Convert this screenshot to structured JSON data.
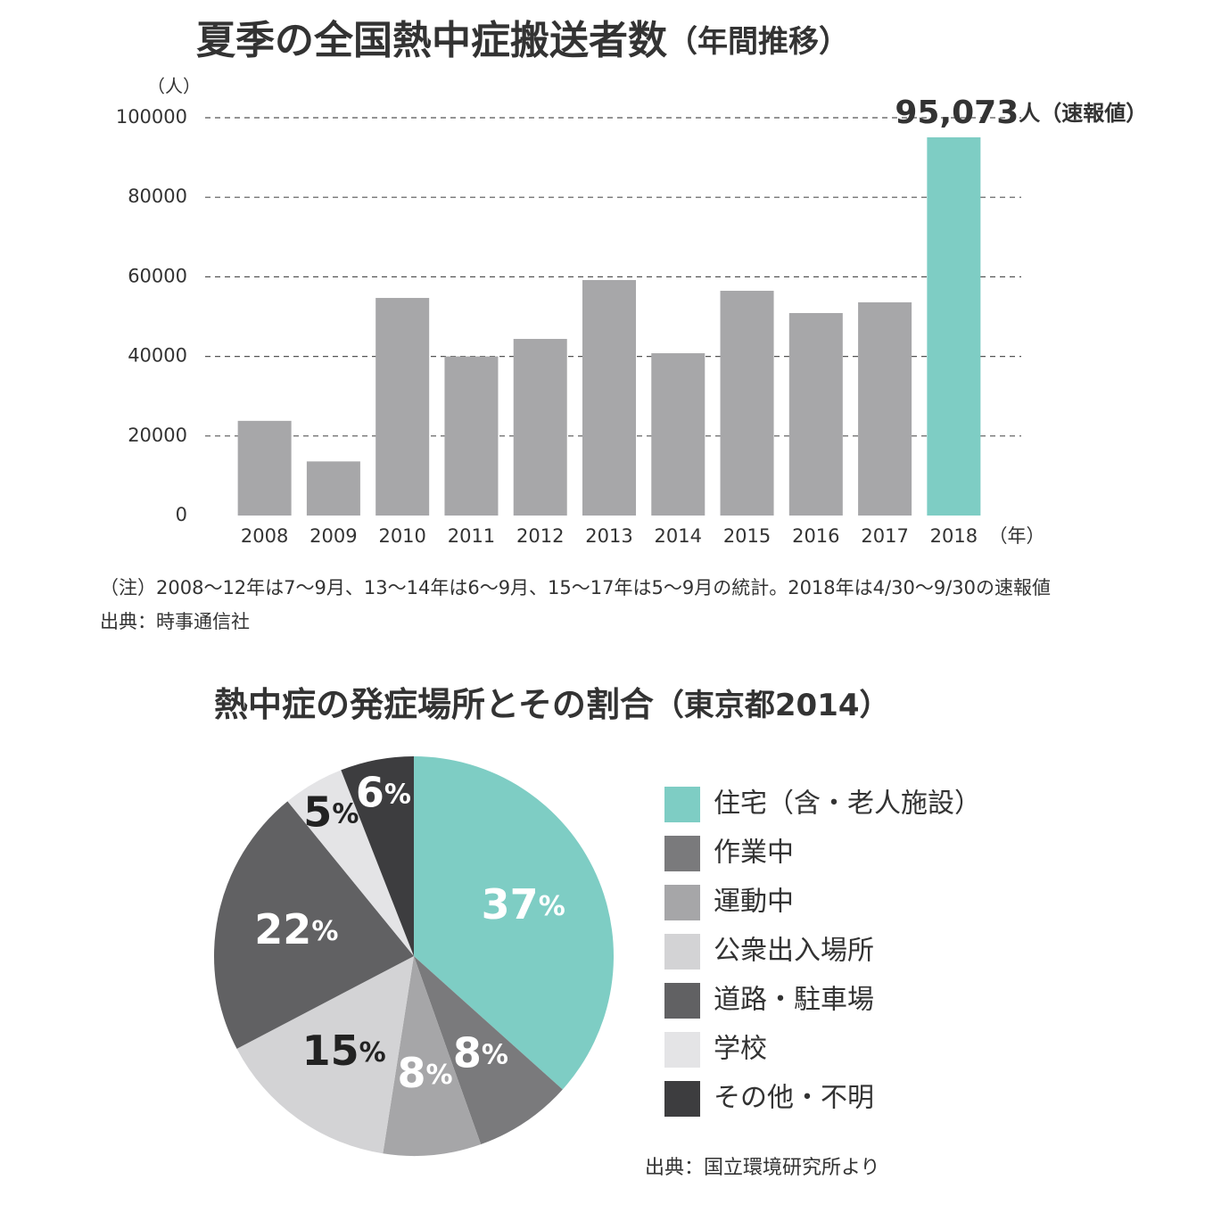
{
  "chart_data": [
    {
      "type": "bar",
      "title": "夏季の全国熱中症搬送者数",
      "subtitle": "（年間推移）",
      "y_label": "（人）",
      "x_label": "（年）",
      "categories": [
        "2008",
        "2009",
        "2010",
        "2011",
        "2012",
        "2013",
        "2014",
        "2015",
        "2016",
        "2017",
        "2018"
      ],
      "values": [
        23800,
        13600,
        54700,
        40000,
        44400,
        59200,
        40800,
        56500,
        50900,
        53600,
        95073
      ],
      "value_labels": [
        null,
        null,
        null,
        null,
        null,
        null,
        null,
        null,
        null,
        null,
        "95,073"
      ],
      "value_unit": "人（速報値）",
      "colors": [
        "#a7a7a9",
        "#a7a7a9",
        "#a7a7a9",
        "#a7a7a9",
        "#a7a7a9",
        "#a7a7a9",
        "#a7a7a9",
        "#a7a7a9",
        "#a7a7a9",
        "#a7a7a9",
        "#7ecdc4"
      ],
      "ylim": [
        0,
        100000
      ],
      "yticks": [
        0,
        20000,
        40000,
        60000,
        80000,
        100000
      ],
      "grid": true,
      "notes": [
        "（注）2008～12年は7～9月、13～14年は6～9月、15～17年は5～9月の統計。2018年は4/30～9/30の速報値",
        "出典：時事通信社"
      ]
    },
    {
      "type": "pie",
      "title": "熱中症の発症場所とその割合",
      "subtitle": "（東京都2014）",
      "categories": [
        "住宅（含・老人施設）",
        "作業中",
        "運動中",
        "公衆出入場所",
        "道路・駐車場",
        "学校",
        "その他・不明"
      ],
      "values": [
        37,
        8,
        8,
        15,
        22,
        5,
        6
      ],
      "value_labels": [
        "37%",
        "8%",
        "8%",
        "15%",
        "22%",
        "5%",
        "6%"
      ],
      "colors": [
        "#7ecdc4",
        "#7a7a7c",
        "#a6a6a8",
        "#d3d3d5",
        "#616163",
        "#e4e4e6",
        "#3d3d3f"
      ],
      "legend": "right",
      "notes": [
        "出典：国立環境研究所より"
      ]
    }
  ]
}
